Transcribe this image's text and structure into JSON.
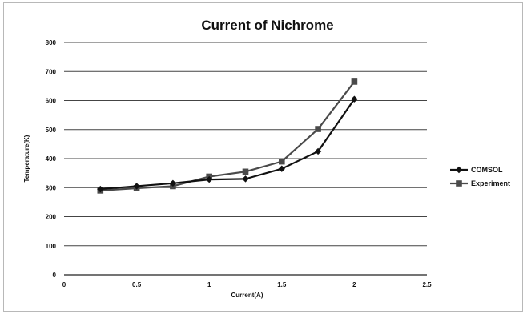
{
  "chart_data": {
    "type": "line",
    "title": "Current of Nichrome",
    "xlabel": "Current(A)",
    "ylabel": "Temperature(K)",
    "xlim": [
      0,
      2.5
    ],
    "ylim": [
      0,
      800
    ],
    "xticks": [
      "0",
      "0.5",
      "1",
      "1.5",
      "2",
      "2.5"
    ],
    "yticks": [
      "0",
      "100",
      "200",
      "300",
      "400",
      "500",
      "600",
      "700",
      "800"
    ],
    "grid": "horizontal",
    "legend": "right",
    "series": [
      {
        "name": "COMSOL",
        "marker": "diamond",
        "color": "#111111",
        "x": [
          0.25,
          0.5,
          0.75,
          1.0,
          1.25,
          1.5,
          1.75,
          2.0
        ],
        "y": [
          295,
          305,
          315,
          328,
          330,
          365,
          425,
          605
        ]
      },
      {
        "name": "Experiment",
        "marker": "square",
        "color": "#4a4a4a",
        "x": [
          0.25,
          0.5,
          0.75,
          1.0,
          1.25,
          1.5,
          1.75,
          2.0
        ],
        "y": [
          290,
          298,
          305,
          338,
          355,
          390,
          502,
          665
        ]
      }
    ]
  }
}
